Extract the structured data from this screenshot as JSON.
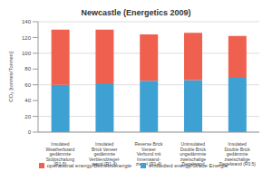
{
  "chart_data": {
    "type": "bar",
    "title": "Newcastle (Energetics 2009)",
    "y_label": "CO₂ [tonnes/Tonnen]",
    "categories": [
      "Insulated\nWeatherboard\ngedämmte\nStülpschalung\n(R1.5)",
      "Insulated\nBrick Veneer\ngedämmte\nVerblendziegel-\nwand (R1.4)",
      "Reverse Brick\nVeneer\nVerbund mit\nInnenwand-\nziegel (R1.4)",
      "Uninsulated\nDouble Brick\nungedämmte\nzweischalige\nZiegelwand",
      "Insulated\nDouble Brick\ngedämmte\nzweischalige\nZiegelwand (R0.5)"
    ],
    "series": [
      {
        "name": "embodied energy/Graue Energie",
        "color": "#3ea1d3",
        "values": [
          60,
          62,
          65,
          66,
          70
        ]
      },
      {
        "name": "operational energy/Betriebsenergie",
        "color": "#f0604f",
        "values": [
          70,
          68,
          59,
          60,
          52
        ]
      }
    ],
    "stacked": true,
    "ylim": [
      0,
      140
    ],
    "yticks": [
      0,
      20,
      40,
      60,
      80,
      100,
      120,
      140
    ],
    "grid": true,
    "legend": "bottom"
  }
}
